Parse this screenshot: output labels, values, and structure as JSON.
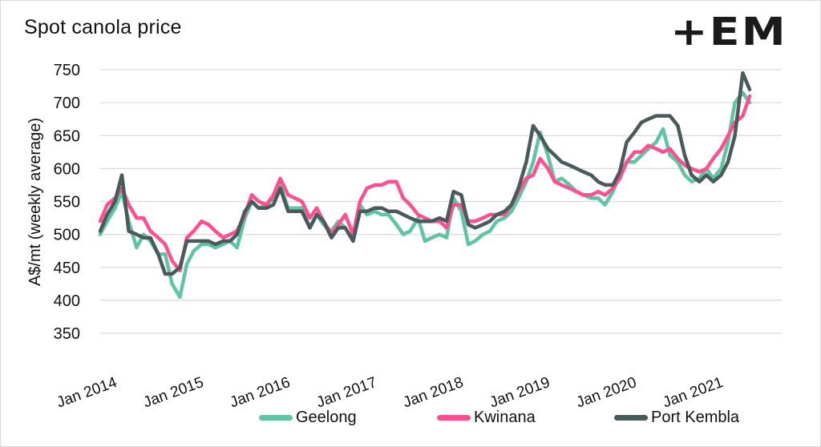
{
  "chart_data": {
    "type": "line",
    "title": "Spot canola price",
    "xlabel": "",
    "ylabel": "A$/mt (weekly average)",
    "ylim": [
      350,
      750
    ],
    "yticks": [
      750,
      700,
      650,
      600,
      550,
      500,
      450,
      400,
      350
    ],
    "xticks": [
      "Jan 2014",
      "Jan 2015",
      "Jan 2016",
      "Jan 2017",
      "Jan 2018",
      "Jan 2019",
      "Jan 2020",
      "Jan 2021"
    ],
    "xrange_years": [
      2014.0,
      2021.5
    ],
    "grid": "horizontal",
    "legend_position": "bottom",
    "x": [
      2014.0,
      2014.08,
      2014.17,
      2014.25,
      2014.33,
      2014.42,
      2014.5,
      2014.58,
      2014.67,
      2014.75,
      2014.83,
      2014.92,
      2015.0,
      2015.08,
      2015.17,
      2015.25,
      2015.33,
      2015.42,
      2015.5,
      2015.58,
      2015.67,
      2015.75,
      2015.83,
      2015.92,
      2016.0,
      2016.08,
      2016.17,
      2016.25,
      2016.33,
      2016.42,
      2016.5,
      2016.58,
      2016.67,
      2016.75,
      2016.83,
      2016.92,
      2017.0,
      2017.08,
      2017.17,
      2017.25,
      2017.33,
      2017.42,
      2017.5,
      2017.58,
      2017.67,
      2017.75,
      2017.83,
      2017.92,
      2018.0,
      2018.08,
      2018.17,
      2018.25,
      2018.33,
      2018.42,
      2018.5,
      2018.58,
      2018.67,
      2018.75,
      2018.83,
      2018.92,
      2019.0,
      2019.08,
      2019.17,
      2019.25,
      2019.33,
      2019.42,
      2019.5,
      2019.58,
      2019.67,
      2019.75,
      2019.83,
      2019.92,
      2020.0,
      2020.08,
      2020.17,
      2020.25,
      2020.33,
      2020.42,
      2020.5,
      2020.58,
      2020.67,
      2020.75,
      2020.83,
      2020.92,
      2021.0,
      2021.08,
      2021.17,
      2021.25,
      2021.33,
      2021.42,
      2021.5
    ],
    "series": [
      {
        "name": "Geelong",
        "color": "#5fc4a4",
        "values": [
          500,
          520,
          540,
          565,
          520,
          480,
          500,
          490,
          470,
          470,
          425,
          405,
          455,
          475,
          485,
          485,
          480,
          485,
          490,
          480,
          525,
          550,
          540,
          545,
          555,
          575,
          540,
          540,
          540,
          510,
          530,
          515,
          505,
          520,
          510,
          490,
          545,
          530,
          535,
          530,
          530,
          515,
          500,
          505,
          525,
          490,
          495,
          500,
          495,
          555,
          535,
          485,
          490,
          500,
          505,
          520,
          525,
          535,
          555,
          580,
          610,
          655,
          620,
          580,
          585,
          575,
          565,
          560,
          555,
          555,
          545,
          565,
          590,
          610,
          610,
          620,
          630,
          640,
          660,
          620,
          610,
          590,
          580,
          585,
          600,
          585,
          600,
          640,
          700,
          715,
          700
        ]
      },
      {
        "name": "Kwinana",
        "color": "#ff4f93",
        "values": [
          520,
          545,
          555,
          570,
          545,
          525,
          525,
          505,
          495,
          485,
          460,
          445,
          495,
          505,
          520,
          515,
          505,
          495,
          500,
          505,
          530,
          560,
          550,
          545,
          560,
          585,
          560,
          555,
          550,
          525,
          540,
          520,
          500,
          515,
          530,
          500,
          550,
          570,
          575,
          575,
          580,
          580,
          555,
          545,
          530,
          525,
          520,
          520,
          510,
          545,
          545,
          520,
          520,
          525,
          530,
          530,
          530,
          545,
          565,
          585,
          590,
          615,
          600,
          580,
          575,
          570,
          565,
          560,
          560,
          565,
          560,
          570,
          585,
          610,
          625,
          625,
          635,
          630,
          625,
          630,
          615,
          605,
          600,
          595,
          600,
          615,
          630,
          650,
          670,
          680,
          710
        ]
      },
      {
        "name": "Port Kembla",
        "color": "#4a5a5a",
        "values": [
          505,
          530,
          550,
          590,
          505,
          500,
          495,
          495,
          470,
          440,
          440,
          450,
          490,
          490,
          490,
          490,
          485,
          490,
          490,
          500,
          535,
          550,
          540,
          540,
          545,
          570,
          535,
          535,
          535,
          510,
          530,
          520,
          495,
          510,
          510,
          490,
          535,
          535,
          540,
          540,
          535,
          535,
          530,
          525,
          520,
          520,
          520,
          525,
          520,
          565,
          560,
          515,
          510,
          515,
          520,
          530,
          535,
          545,
          570,
          610,
          665,
          650,
          630,
          620,
          610,
          605,
          600,
          595,
          590,
          580,
          575,
          575,
          595,
          640,
          655,
          670,
          675,
          680,
          680,
          680,
          665,
          620,
          590,
          580,
          590,
          580,
          590,
          610,
          650,
          745,
          720
        ]
      }
    ]
  },
  "logo": {
    "text": "+EM"
  }
}
